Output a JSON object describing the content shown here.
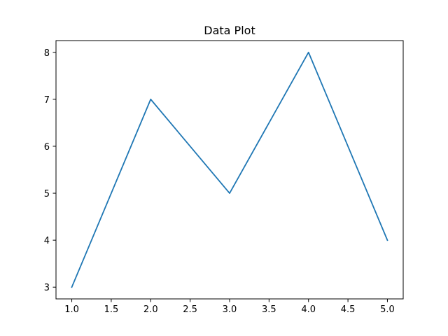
{
  "chart_data": {
    "type": "line",
    "title": "Data Plot",
    "xlabel": "",
    "ylabel": "",
    "x": [
      1,
      2,
      3,
      4,
      5
    ],
    "series": [
      {
        "values": [
          3,
          7,
          5,
          8,
          4
        ],
        "color": "#1f77b4"
      }
    ],
    "xlim": [
      0.8,
      5.2
    ],
    "ylim": [
      2.75,
      8.25
    ],
    "xticks": [
      1.0,
      1.5,
      2.0,
      2.5,
      3.0,
      3.5,
      4.0,
      4.5,
      5.0
    ],
    "xtick_labels": [
      "1.0",
      "1.5",
      "2.0",
      "2.5",
      "3.0",
      "3.5",
      "4.0",
      "4.5",
      "5.0"
    ],
    "yticks": [
      3,
      4,
      5,
      6,
      7,
      8
    ],
    "ytick_labels": [
      "3",
      "4",
      "5",
      "6",
      "7",
      "8"
    ],
    "grid": false,
    "legend": false
  }
}
